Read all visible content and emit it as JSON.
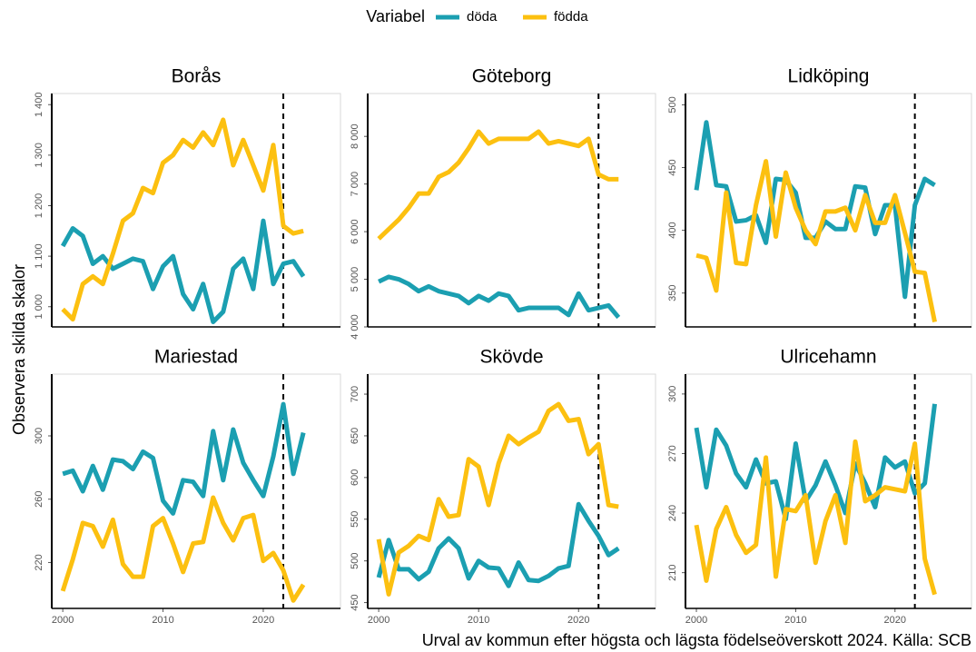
{
  "legend_title": "Variabel",
  "ylabel": "Observera skilda skalor",
  "caption": "Urval av kommun efter högsta och lägsta födelseöverskott 2024. Källa: SCB",
  "chart_data": [
    {
      "type": "line",
      "title": "Borås",
      "x": [
        2000,
        2001,
        2002,
        2003,
        2004,
        2005,
        2006,
        2007,
        2008,
        2009,
        2010,
        2011,
        2012,
        2013,
        2014,
        2015,
        2016,
        2017,
        2018,
        2019,
        2020,
        2021,
        2022,
        2023,
        2024
      ],
      "series": [
        {
          "name": "döda",
          "color": "#1b9fb1",
          "values": [
            1120,
            1155,
            1140,
            1085,
            1100,
            1075,
            1085,
            1095,
            1090,
            1035,
            1080,
            1100,
            1025,
            995,
            1045,
            970,
            990,
            1075,
            1095,
            1035,
            1170,
            1045,
            1085,
            1090,
            1060
          ]
        },
        {
          "name": "födda",
          "color": "#fcc010",
          "values": [
            995,
            975,
            1045,
            1060,
            1045,
            1105,
            1170,
            1185,
            1235,
            1225,
            1285,
            1300,
            1330,
            1315,
            1345,
            1320,
            1370,
            1280,
            1330,
            1280,
            1230,
            1320,
            1160,
            1145,
            1150
          ]
        }
      ],
      "xlim": [
        1998.9,
        2027.7
      ],
      "ylim": [
        960,
        1422
      ],
      "yticks": [
        {
          "value": 1000,
          "label": "1 000"
        },
        {
          "value": 1100,
          "label": "1 100"
        },
        {
          "value": 1200,
          "label": "1 200"
        },
        {
          "value": 1300,
          "label": "1 300"
        },
        {
          "value": 1400,
          "label": "1 400"
        }
      ],
      "vline": 2022
    },
    {
      "type": "line",
      "title": "Göteborg",
      "x": [
        2000,
        2001,
        2002,
        2003,
        2004,
        2005,
        2006,
        2007,
        2008,
        2009,
        2010,
        2011,
        2012,
        2013,
        2014,
        2015,
        2016,
        2017,
        2018,
        2019,
        2020,
        2021,
        2022,
        2023,
        2024
      ],
      "series": [
        {
          "name": "döda",
          "color": "#1b9fb1",
          "values": [
            4950,
            5050,
            5000,
            4900,
            4750,
            4850,
            4750,
            4700,
            4650,
            4500,
            4650,
            4550,
            4700,
            4650,
            4350,
            4400,
            4400,
            4400,
            4400,
            4250,
            4700,
            4350,
            4400,
            4450,
            4200
          ]
        },
        {
          "name": "födda",
          "color": "#fcc010",
          "values": [
            5850,
            6050,
            6250,
            6500,
            6800,
            6800,
            7150,
            7250,
            7450,
            7750,
            8100,
            7850,
            7950,
            7950,
            7950,
            7950,
            8100,
            7850,
            7900,
            7850,
            7800,
            7950,
            7200,
            7100,
            7100
          ]
        }
      ],
      "xlim": [
        1998.9,
        2027.7
      ],
      "ylim": [
        4000,
        8900
      ],
      "yticks": [
        {
          "value": 4000,
          "label": "4 000"
        },
        {
          "value": 5000,
          "label": "5 000"
        },
        {
          "value": 6000,
          "label": "6 000"
        },
        {
          "value": 7000,
          "label": "7 000"
        },
        {
          "value": 8000,
          "label": "8 000"
        }
      ],
      "vline": 2022
    },
    {
      "type": "line",
      "title": "Lidköping",
      "x": [
        2000,
        2001,
        2002,
        2003,
        2004,
        2005,
        2006,
        2007,
        2008,
        2009,
        2010,
        2011,
        2012,
        2013,
        2014,
        2015,
        2016,
        2017,
        2018,
        2019,
        2020,
        2021,
        2022,
        2023,
        2024
      ],
      "series": [
        {
          "name": "döda",
          "color": "#1b9fb1",
          "values": [
            432,
            486,
            436,
            435,
            407,
            408,
            412,
            390,
            441,
            440,
            430,
            394,
            394,
            407,
            401,
            401,
            435,
            434,
            397,
            420,
            420,
            347,
            420,
            441,
            436
          ]
        },
        {
          "name": "födda",
          "color": "#fcc010",
          "values": [
            380,
            378,
            352,
            430,
            374,
            373,
            420,
            455,
            395,
            446,
            418,
            400,
            389,
            415,
            415,
            418,
            400,
            428,
            406,
            406,
            428,
            398,
            367,
            366,
            327
          ]
        }
      ],
      "xlim": [
        1998.9,
        2027.7
      ],
      "ylim": [
        323,
        509
      ],
      "yticks": [
        350,
        400,
        450,
        500
      ],
      "vline": 2022
    },
    {
      "type": "line",
      "title": "Mariestad",
      "x": [
        2000,
        2001,
        2002,
        2003,
        2004,
        2005,
        2006,
        2007,
        2008,
        2009,
        2010,
        2011,
        2012,
        2013,
        2014,
        2015,
        2016,
        2017,
        2018,
        2019,
        2020,
        2021,
        2022,
        2023,
        2024
      ],
      "series": [
        {
          "name": "döda",
          "color": "#1b9fb1",
          "values": [
            276,
            278,
            265,
            281,
            266,
            285,
            284,
            279,
            290,
            286,
            259,
            251,
            272,
            271,
            262,
            303,
            272,
            304,
            283,
            272,
            262,
            287,
            320,
            276,
            302
          ]
        },
        {
          "name": "födda",
          "color": "#fcc010",
          "values": [
            202,
            222,
            245,
            243,
            230,
            247,
            219,
            211,
            211,
            243,
            248,
            232,
            214,
            232,
            233,
            261,
            245,
            234,
            248,
            250,
            221,
            226,
            215,
            196,
            206
          ]
        }
      ],
      "xlim": [
        1998.9,
        2027.7
      ],
      "ylim": [
        191,
        339
      ],
      "xticks": [
        2000,
        2010,
        2020
      ],
      "yticks": [
        220,
        260,
        300
      ],
      "vline": 2022
    },
    {
      "type": "line",
      "title": "Skövde",
      "x": [
        2000,
        2001,
        2002,
        2003,
        2004,
        2005,
        2006,
        2007,
        2008,
        2009,
        2010,
        2011,
        2012,
        2013,
        2014,
        2015,
        2016,
        2017,
        2018,
        2019,
        2020,
        2021,
        2022,
        2023,
        2024
      ],
      "series": [
        {
          "name": "döda",
          "color": "#1b9fb1",
          "values": [
            480,
            525,
            490,
            490,
            478,
            487,
            515,
            527,
            515,
            479,
            500,
            492,
            491,
            470,
            498,
            477,
            476,
            482,
            491,
            494,
            568,
            548,
            530,
            507,
            515
          ]
        },
        {
          "name": "födda",
          "color": "#fcc010",
          "values": [
            526,
            460,
            510,
            518,
            530,
            525,
            574,
            553,
            555,
            622,
            613,
            567,
            617,
            650,
            640,
            648,
            655,
            680,
            688,
            668,
            670,
            628,
            640,
            567,
            565
          ]
        }
      ],
      "xlim": [
        1998.9,
        2027.7
      ],
      "ylim": [
        443,
        724
      ],
      "xticks": [
        2000,
        2010,
        2020
      ],
      "yticks": [
        450,
        500,
        550,
        600,
        650,
        700
      ],
      "vline": 2022
    },
    {
      "type": "line",
      "title": "Ulricehamn",
      "x": [
        2000,
        2001,
        2002,
        2003,
        2004,
        2005,
        2006,
        2007,
        2008,
        2009,
        2010,
        2011,
        2012,
        2013,
        2014,
        2015,
        2016,
        2017,
        2018,
        2019,
        2020,
        2021,
        2022,
        2023,
        2024
      ],
      "series": [
        {
          "name": "döda",
          "color": "#1b9fb1",
          "values": [
            283,
            253,
            282,
            274,
            260,
            253,
            267,
            255,
            256,
            237,
            275,
            246,
            254,
            266,
            254,
            240,
            265,
            255,
            243,
            268,
            263,
            266,
            250,
            255,
            295
          ]
        },
        {
          "name": "födda",
          "color": "#fcc010",
          "values": [
            234,
            206,
            232,
            243,
            229,
            220,
            224,
            268,
            208,
            242,
            241,
            249,
            215,
            236,
            249,
            225,
            276,
            246,
            249,
            253,
            252,
            251,
            275,
            217,
            199
          ]
        }
      ],
      "xlim": [
        1998.9,
        2027.7
      ],
      "ylim": [
        192,
        310
      ],
      "xticks": [
        2000,
        2010,
        2020
      ],
      "yticks": [
        210,
        240,
        270,
        300
      ],
      "vline": 2022
    }
  ]
}
